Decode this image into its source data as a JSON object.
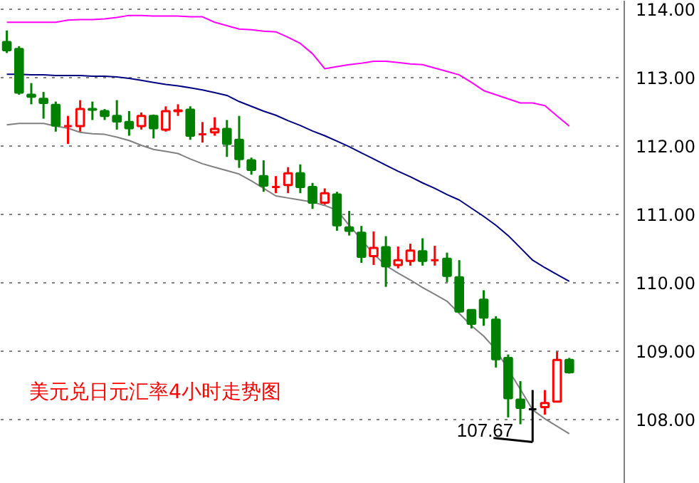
{
  "chart_data": {
    "type": "candlestick",
    "title": "美元兑日元汇率4小时走势图",
    "categories": [
      null,
      null,
      null,
      null,
      null,
      null,
      null,
      null,
      null,
      null,
      null,
      null,
      null,
      null,
      null,
      null,
      null,
      null,
      null,
      null,
      null,
      null,
      null,
      null,
      null,
      null,
      null,
      null,
      null,
      null,
      null,
      null,
      null,
      null,
      null,
      null,
      null,
      null,
      null,
      null,
      null,
      null,
      null,
      null,
      null,
      null,
      null
    ],
    "ohlc": [
      [
        113.52,
        113.69,
        113.36,
        113.4
      ],
      [
        113.42,
        113.46,
        112.75,
        112.78
      ],
      [
        112.75,
        112.92,
        112.61,
        112.72
      ],
      [
        112.69,
        112.79,
        112.4,
        112.63
      ],
      [
        112.6,
        112.65,
        112.21,
        112.3
      ],
      [
        112.29,
        112.44,
        112.03,
        112.29
      ],
      [
        112.29,
        112.67,
        112.21,
        112.54
      ],
      [
        112.54,
        112.65,
        112.38,
        112.53
      ],
      [
        112.51,
        112.54,
        112.38,
        112.44
      ],
      [
        112.44,
        112.67,
        112.24,
        112.36
      ],
      [
        112.35,
        112.51,
        112.15,
        112.26
      ],
      [
        112.29,
        112.49,
        112.24,
        112.44
      ],
      [
        112.44,
        112.46,
        112.11,
        112.26
      ],
      [
        112.24,
        112.58,
        112.21,
        112.51
      ],
      [
        112.51,
        112.61,
        112.44,
        112.52
      ],
      [
        112.53,
        112.58,
        112.09,
        112.15
      ],
      [
        112.17,
        112.35,
        112.05,
        112.17
      ],
      [
        112.2,
        112.42,
        112.15,
        112.25
      ],
      [
        112.25,
        112.38,
        111.84,
        112.03
      ],
      [
        112.09,
        112.44,
        111.68,
        111.81
      ],
      [
        111.79,
        111.83,
        111.58,
        111.65
      ],
      [
        111.56,
        111.79,
        111.33,
        111.42
      ],
      [
        111.4,
        111.56,
        111.31,
        111.4
      ],
      [
        111.43,
        111.69,
        111.31,
        111.6
      ],
      [
        111.6,
        111.73,
        111.31,
        111.4
      ],
      [
        111.4,
        111.46,
        111.08,
        111.17
      ],
      [
        111.17,
        111.38,
        111.14,
        111.31
      ],
      [
        111.29,
        111.33,
        110.76,
        110.84
      ],
      [
        110.81,
        111.05,
        110.69,
        110.76
      ],
      [
        110.73,
        110.83,
        110.29,
        110.38
      ],
      [
        110.39,
        110.75,
        110.26,
        110.51
      ],
      [
        110.52,
        110.68,
        109.94,
        110.24
      ],
      [
        110.26,
        110.53,
        110.21,
        110.33
      ],
      [
        110.32,
        110.57,
        110.25,
        110.47
      ],
      [
        110.46,
        110.65,
        110.25,
        110.32
      ],
      [
        110.33,
        110.54,
        110.25,
        110.33
      ],
      [
        110.35,
        110.44,
        110.01,
        110.1
      ],
      [
        110.08,
        110.33,
        109.56,
        109.58
      ],
      [
        109.6,
        109.6,
        109.33,
        109.4
      ],
      [
        109.75,
        109.89,
        109.37,
        109.49
      ],
      [
        109.46,
        109.51,
        108.76,
        108.88
      ],
      [
        108.9,
        108.95,
        108.03,
        108.31
      ],
      [
        108.29,
        108.56,
        107.93,
        108.17
      ],
      [
        108.15,
        108.43,
        107.67,
        108.15
      ],
      [
        108.18,
        108.43,
        108.07,
        108.24
      ],
      [
        108.26,
        108.99,
        108.26,
        108.87
      ],
      [
        108.87,
        108.9,
        108.67,
        108.69
      ]
    ],
    "colors": [
      "#008000",
      "#008000",
      "#008000",
      "#008000",
      "#008000",
      "#ff0000",
      "#ff0000",
      "#008000",
      "#008000",
      "#008000",
      "#008000",
      "#ff0000",
      "#008000",
      "#ff0000",
      "#ff0000",
      "#008000",
      "#ff0000",
      "#ff0000",
      "#008000",
      "#008000",
      "#008000",
      "#008000",
      "#ff0000",
      "#ff0000",
      "#008000",
      "#008000",
      "#ff0000",
      "#008000",
      "#008000",
      "#008000",
      "#ff0000",
      "#008000",
      "#ff0000",
      "#ff0000",
      "#008000",
      "#ff0000",
      "#008000",
      "#008000",
      "#008000",
      "#008000",
      "#008000",
      "#008000",
      "#008000",
      "#000000",
      "#ff0000",
      "#ff0000",
      "#008000"
    ],
    "series": [
      {
        "type": "line",
        "color": "#ff00ff",
        "values": [
          113.81,
          113.81,
          113.81,
          113.81,
          113.81,
          113.84,
          113.85,
          113.85,
          113.86,
          113.88,
          113.91,
          113.91,
          113.9,
          113.9,
          113.9,
          113.89,
          113.89,
          113.81,
          113.76,
          113.71,
          113.7,
          113.68,
          113.67,
          113.59,
          113.5,
          113.35,
          113.13,
          113.16,
          113.19,
          113.21,
          113.24,
          113.24,
          113.22,
          113.2,
          113.19,
          113.14,
          113.09,
          113.04,
          112.93,
          112.81,
          112.75,
          112.69,
          112.63,
          112.63,
          112.59,
          112.44,
          112.29
        ]
      },
      {
        "type": "line",
        "color": "#000080",
        "values": [
          113.05,
          113.05,
          113.04,
          113.04,
          113.03,
          113.03,
          113.03,
          113.02,
          113.02,
          113.01,
          112.99,
          112.96,
          112.93,
          112.9,
          112.88,
          112.85,
          112.82,
          112.78,
          112.74,
          112.65,
          112.58,
          112.51,
          112.45,
          112.37,
          112.3,
          112.22,
          112.15,
          112.07,
          111.99,
          111.9,
          111.81,
          111.72,
          111.63,
          111.55,
          111.46,
          111.38,
          111.29,
          111.21,
          111.09,
          110.97,
          110.84,
          110.69,
          110.51,
          110.33,
          110.22,
          110.12,
          110.02
        ]
      },
      {
        "type": "line",
        "color": "#808080",
        "values": [
          112.31,
          112.33,
          112.33,
          112.33,
          112.29,
          112.26,
          112.2,
          112.18,
          112.17,
          112.13,
          112.08,
          112.01,
          111.95,
          111.92,
          111.89,
          111.81,
          111.74,
          111.69,
          111.64,
          111.59,
          111.49,
          111.38,
          111.27,
          111.24,
          111.21,
          111.18,
          111.13,
          111.06,
          110.84,
          110.63,
          110.42,
          110.25,
          110.14,
          110.04,
          109.93,
          109.83,
          109.73,
          109.55,
          109.37,
          109.22,
          109.02,
          null,
          108.44,
          108.14,
          108.01,
          107.9,
          107.79
        ]
      }
    ],
    "ylim": [
      107.06,
      114.125
    ],
    "yticks": [
      {
        "value": 108,
        "label": "108.00"
      },
      {
        "value": 109,
        "label": "109.00"
      },
      {
        "value": 110,
        "label": "110.00"
      },
      {
        "value": 111,
        "label": "111.00"
      },
      {
        "value": 112,
        "label": "112.00"
      },
      {
        "value": 113,
        "label": "113.00"
      },
      {
        "value": 114,
        "label": "114.00"
      }
    ],
    "grid": "y",
    "tick_labels": "y",
    "annotations": [
      "107.67"
    ]
  }
}
